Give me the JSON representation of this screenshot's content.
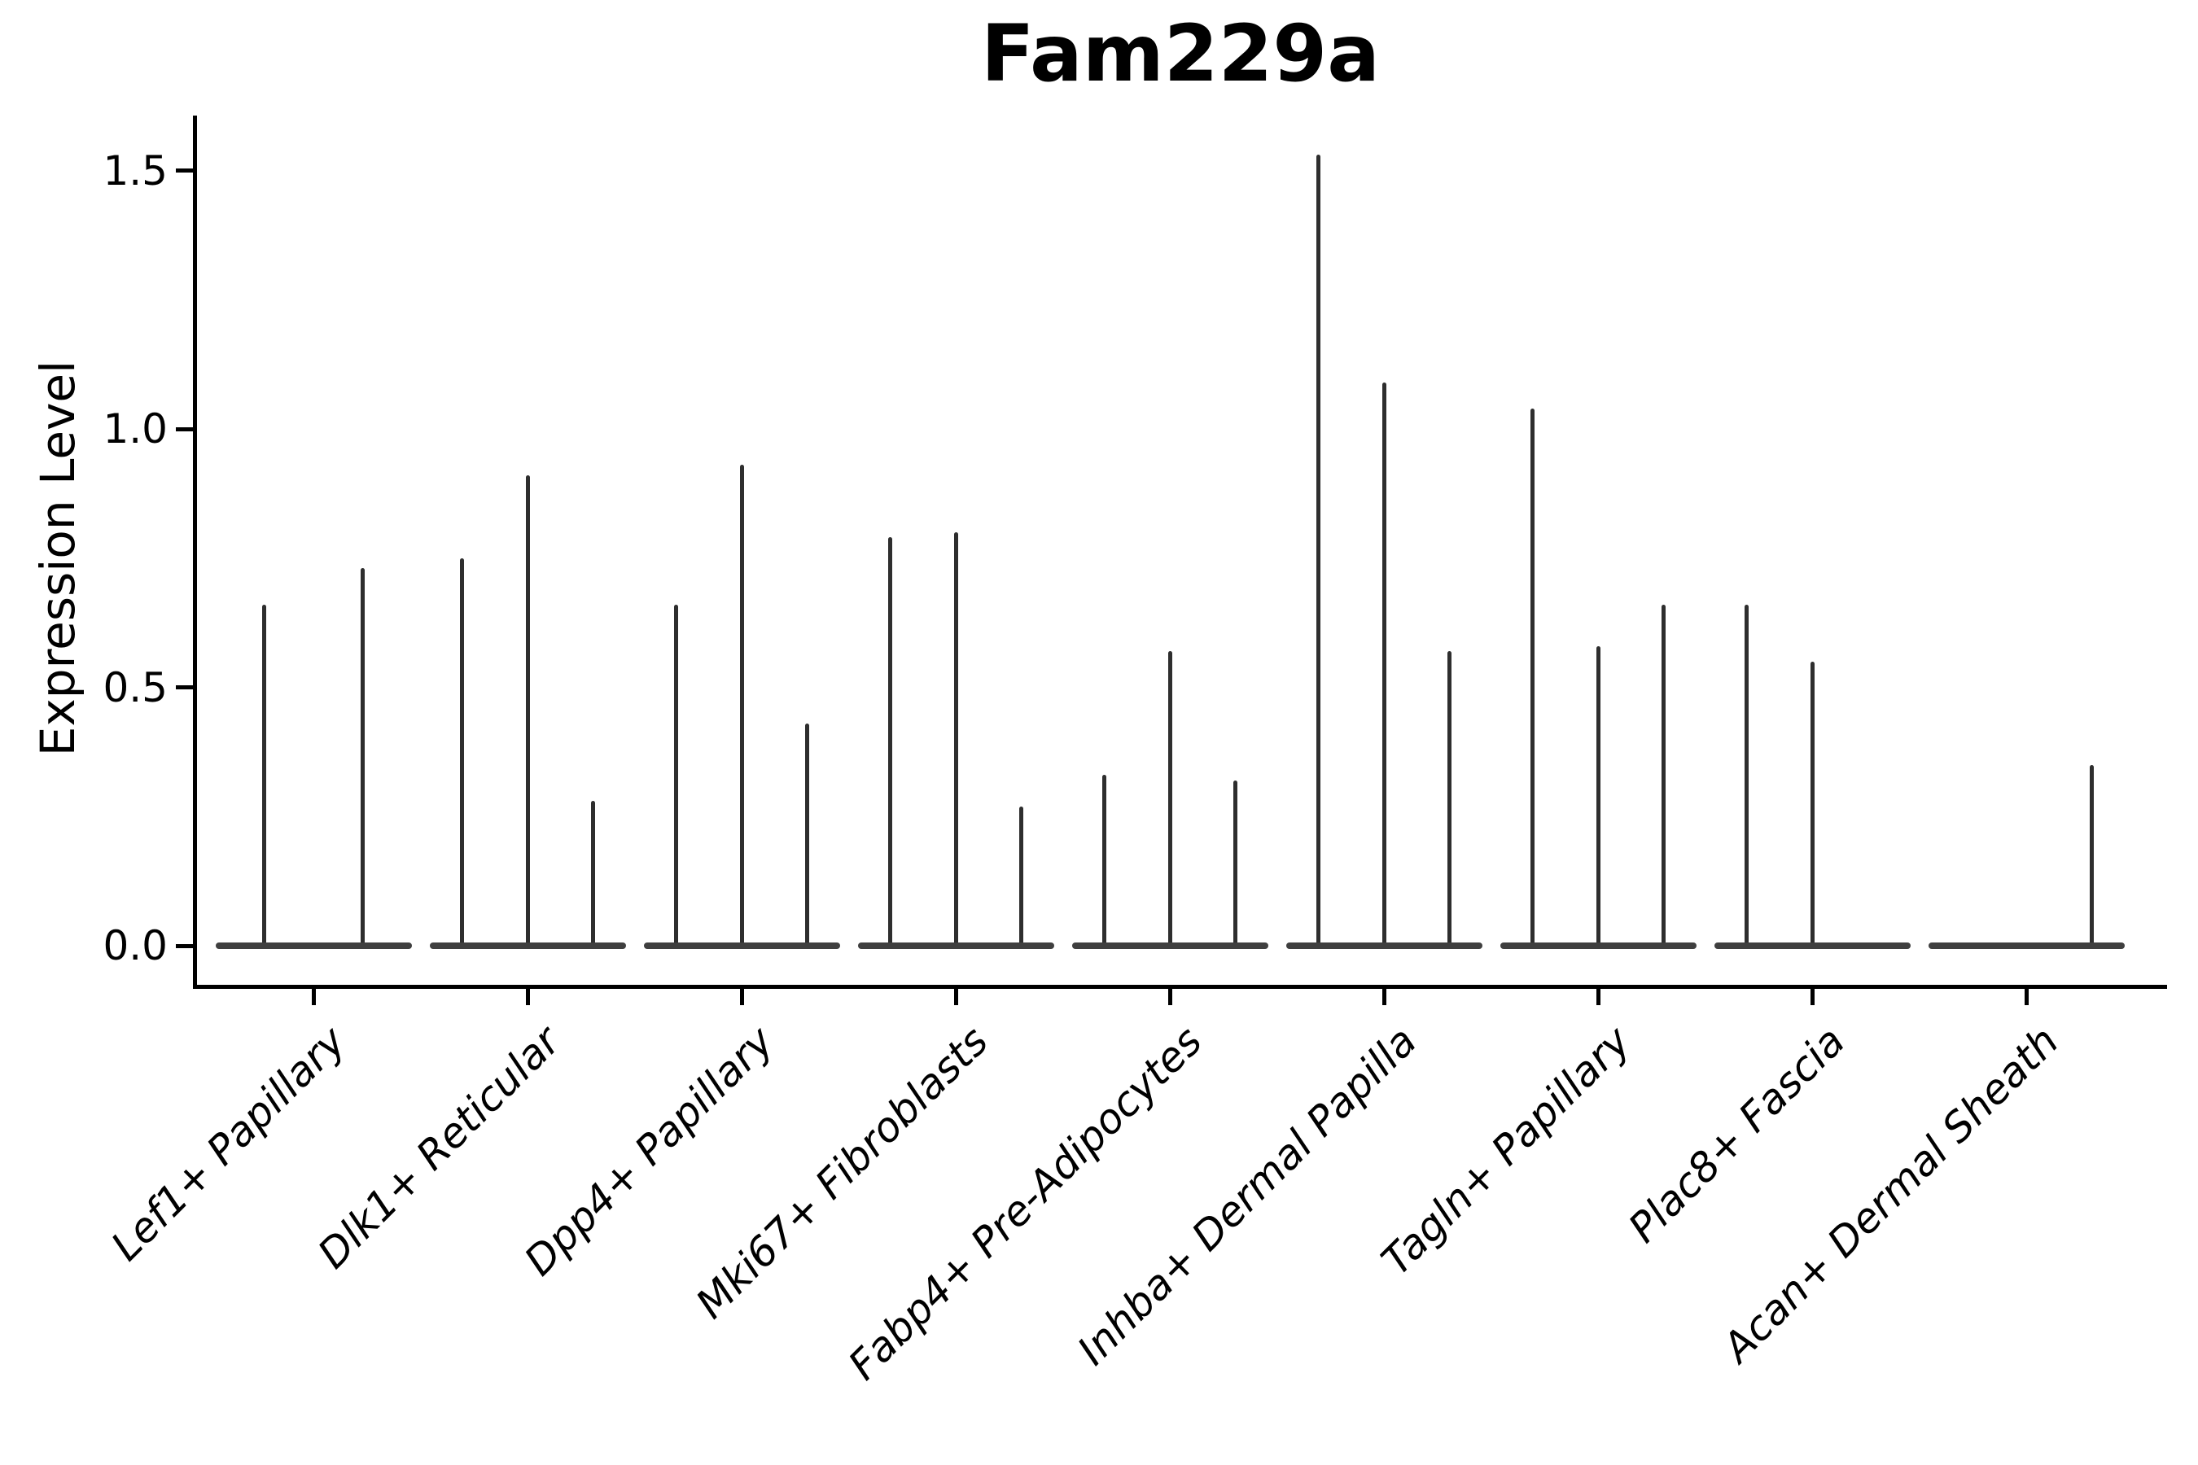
{
  "chart_data": {
    "type": "violin",
    "title": "Fam229a",
    "ylabel": "Expression Level",
    "xlabel": "",
    "yticks": [
      {
        "label": "0.0",
        "value": 0.0
      },
      {
        "label": "0.5",
        "value": 0.5
      },
      {
        "label": "1.0",
        "value": 1.0
      },
      {
        "label": "1.5",
        "value": 1.5
      }
    ],
    "ylim": [
      -0.08,
      1.61
    ],
    "grid": false,
    "legend": "none",
    "x_label_rotation_deg": 45,
    "categories": [
      "Lef1+ Papillary",
      "Dlk1+ Reticular",
      "Dpp4+ Papillary",
      "Mki67+ Fibroblasts",
      "Fabp4+ Pre-Adipocytes",
      "Inhba+ Dermal Papilla",
      "Tagln+ Papillary",
      "Plac8+ Fascia",
      "Acan+ Dermal Sheath"
    ],
    "groups": [
      {
        "category": "Lef1+ Papillary",
        "violin_max_values": [
          0.66,
          0.73
        ]
      },
      {
        "category": "Dlk1+ Reticular",
        "violin_max_values": [
          0.75,
          0.91,
          0.28
        ]
      },
      {
        "category": "Dpp4+ Papillary",
        "violin_max_values": [
          0.66,
          0.93,
          0.43
        ]
      },
      {
        "category": "Mki67+ Fibroblasts",
        "violin_max_values": [
          0.79,
          0.8,
          0.27
        ]
      },
      {
        "category": "Fabp4+ Pre-Adipocytes",
        "violin_max_values": [
          0.33,
          0.57,
          0.32
        ]
      },
      {
        "category": "Inhba+ Dermal Papilla",
        "violin_max_values": [
          1.53,
          1.09,
          0.57
        ]
      },
      {
        "category": "Tagln+ Papillary",
        "violin_max_values": [
          1.04,
          0.58,
          0.66
        ]
      },
      {
        "category": "Plac8+ Fascia",
        "violin_max_values": [
          0.66,
          0.55,
          0.0
        ]
      },
      {
        "category": "Acan+ Dermal Sheath",
        "violin_max_values": [
          0.0,
          0.0,
          0.35
        ]
      }
    ],
    "note": "Zero-inflated violins: flat base at 0 with thin density spike up to the max expression value per violin; value 0.0 means an all-zero (flat) violin"
  },
  "colors": {
    "background": "#ffffff",
    "spike": "#2e2e2e",
    "baseline": "#3f3f3f",
    "spine": "#000000",
    "text": "#000000"
  }
}
